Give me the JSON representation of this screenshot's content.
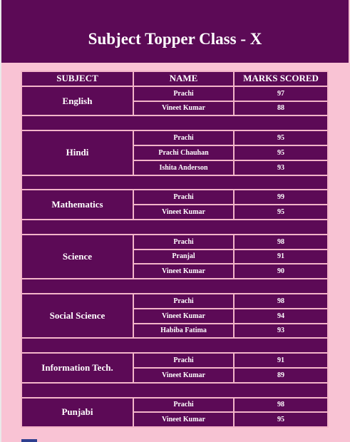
{
  "header": {
    "title": "Subject Topper Class - X"
  },
  "table": {
    "columns": [
      "SUBJECT",
      "NAME",
      "MARKS SCORED"
    ],
    "groups": [
      {
        "subject": "English",
        "rows": [
          [
            "Prachi",
            97
          ],
          [
            "Vineet Kumar",
            88
          ]
        ]
      },
      {
        "subject": "Hindi",
        "rows": [
          [
            "Prachi",
            95
          ],
          [
            "Prachi Chauhan",
            95
          ],
          [
            "Ishita Anderson",
            93
          ]
        ]
      },
      {
        "subject": "Mathematics",
        "rows": [
          [
            "Prachi",
            99
          ],
          [
            "Vineet Kumar",
            95
          ]
        ]
      },
      {
        "subject": "Science",
        "rows": [
          [
            "Prachi",
            98
          ],
          [
            "Pranjal",
            91
          ],
          [
            "Vineet Kumar",
            90
          ]
        ]
      },
      {
        "subject": "Social Science",
        "rows": [
          [
            "Prachi",
            98
          ],
          [
            "Vineet Kumar",
            94
          ],
          [
            "Habiba Fatima",
            93
          ]
        ]
      },
      {
        "subject": "Information Tech.",
        "rows": [
          [
            "Prachi",
            91
          ],
          [
            "Vineet Kumar",
            89
          ]
        ]
      },
      {
        "subject": "Punjabi",
        "rows": [
          [
            "Prachi",
            98
          ],
          [
            "Vineet Kumar",
            95
          ]
        ]
      }
    ]
  }
}
